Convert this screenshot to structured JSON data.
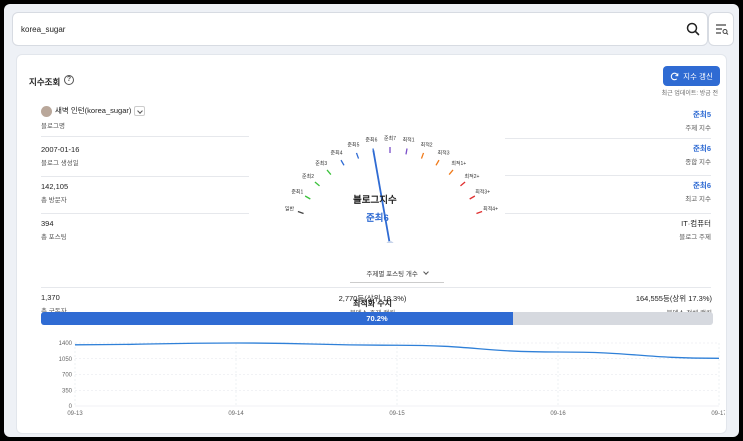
{
  "search": {
    "value": "korea_sugar"
  },
  "header": {
    "title": "지수조회",
    "refresh_label": "지수 갱신",
    "updated_text": "최근 업데이트: 방금 전"
  },
  "blog": {
    "name": "새벽 인턴(korea_sugar)",
    "name_label": "블로그명",
    "created": "2007-01-16",
    "created_label": "블로그 생성일",
    "visitors": "142,105",
    "visitors_label": "총 방문자",
    "posts": "394",
    "posts_label": "총 포스팅",
    "subscribers": "1,370",
    "subscribers_label": "총 구독자"
  },
  "indices": {
    "topic_index": "준최5",
    "topic_index_label": "주제 지수",
    "overall_index": "준최6",
    "overall_index_label": "종합 지수",
    "max_index": "준최6",
    "max_index_label": "최고 지수",
    "blog_topic": "IT·컴퓨터",
    "blog_topic_label": "블로그 주제",
    "topic_rank": "2,770등(상위 18.3%)",
    "topic_rank_label": "블덱스 주제 랭킹",
    "total_rank": "164,555등(상위 17.3%)",
    "total_rank_label": "블덱스 전체 랭킹"
  },
  "gauge": {
    "title": "블로그지수",
    "value": "준최6",
    "levels": [
      "일반",
      "준최1",
      "준최2",
      "준최3",
      "준최4",
      "준최5",
      "준최6",
      "준최7",
      "최적1",
      "최적2",
      "최적3",
      "최적1+",
      "최적2+",
      "최적3+",
      "최적4+"
    ],
    "tick_colors": [
      "#444444",
      "#3cc23c",
      "#3cc23c",
      "#3cc23c",
      "#2f6bd3",
      "#2f6bd3",
      "#2f6bd3",
      "#7a4fc9",
      "#7a4fc9",
      "#f07a1a",
      "#f07a1a",
      "#f07a1a",
      "#e03030",
      "#e03030",
      "#e03030"
    ],
    "current_index": 6,
    "posting_select": "주제별 포스팅 개수"
  },
  "optimization": {
    "title": "최적화 수치",
    "percent": 70.2,
    "percent_label": "70.2%"
  },
  "chart_data": {
    "type": "line",
    "x": [
      "09-13",
      "09-14",
      "09-15",
      "09-16",
      "09-17"
    ],
    "series": [
      {
        "values": [
          1360,
          1400,
          1350,
          1200,
          1060
        ]
      }
    ],
    "yticks": [
      0,
      350,
      700,
      1050,
      1400
    ],
    "ylim": [
      0,
      1400
    ],
    "color": "#2f80d8"
  }
}
